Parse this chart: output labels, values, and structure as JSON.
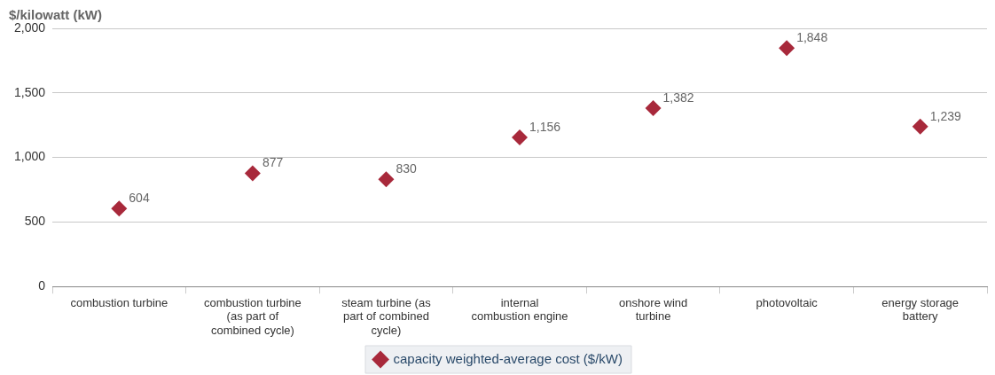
{
  "chart_data": {
    "type": "scatter",
    "ylabel": "$/kilowatt (kW)",
    "categories": [
      "combustion turbine",
      "combustion turbine (as part of combined cycle)",
      "steam turbine (as part of combined cycle)",
      "internal combustion engine",
      "onshore wind turbine",
      "photovoltaic",
      "energy storage battery"
    ],
    "series": [
      {
        "name": "capacity weighted-average cost ($/kW)",
        "color": "#a8293b",
        "values": [
          604,
          877,
          830,
          1156,
          1382,
          1848,
          1239
        ],
        "value_labels": [
          "604",
          "877",
          "830",
          "1,156",
          "1,382",
          "1,848",
          "1,239"
        ]
      }
    ],
    "ylim": [
      0,
      2000
    ],
    "yticks": [
      0,
      500,
      {
        "value": 1000,
        "label": "1,000"
      },
      {
        "value": 1500,
        "label": "1,500"
      },
      {
        "value": 2000,
        "label": "2,000"
      }
    ],
    "grid": "y",
    "legend": "bottom",
    "marker": "diamond"
  }
}
